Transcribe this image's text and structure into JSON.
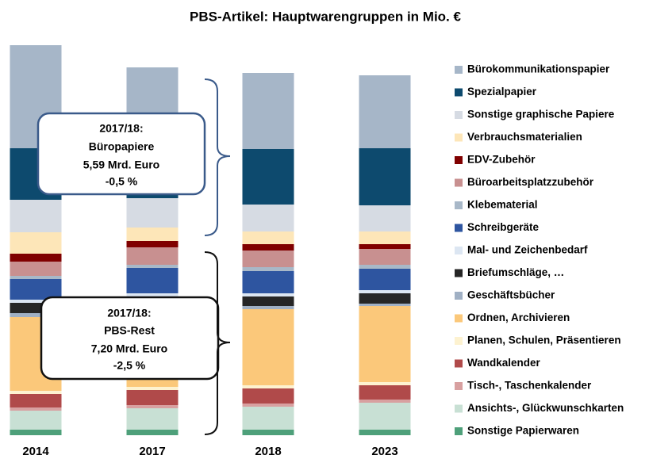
{
  "chart_data": {
    "type": "stacked_bar",
    "title": "PBS-Artikel:  Hauptwarengruppen in Mio. €",
    "categories": [
      "2014",
      "2017",
      "2018",
      "2023"
    ],
    "ylim": [
      0,
      14000
    ],
    "series": [
      {
        "name": "Bürokommunikationspapier",
        "color": "#a6b6c8",
        "values": [
          3640,
          2800,
          2688,
          2576
        ]
      },
      {
        "name": "Spezialpapier",
        "color": "#0d4a6e",
        "values": [
          1820,
          1820,
          1960,
          2016
        ]
      },
      {
        "name": "Sonstige graphische Papiere",
        "color": "#d6dbe3",
        "values": [
          1148,
          1036,
          952,
          924
        ]
      },
      {
        "name": "Verbrauchsmaterialien",
        "color": "#fde6b8",
        "values": [
          756,
          476,
          448,
          448
        ]
      },
      {
        "name": "EDV-Zubehör",
        "color": "#800000",
        "values": [
          280,
          224,
          224,
          168
        ]
      },
      {
        "name": "Büroarbeitsplatzzubehör",
        "color": "#c89090",
        "values": [
          504,
          616,
          588,
          560
        ]
      },
      {
        "name": "Klebematerial",
        "color": "#a8b8c8",
        "values": [
          112,
          112,
          140,
          140
        ]
      },
      {
        "name": "Schreibgeräte",
        "color": "#2e55a0",
        "values": [
          728,
          896,
          784,
          756
        ]
      },
      {
        "name": "Mal- und Zeichenbedarf",
        "color": "#dce6f2",
        "values": [
          112,
          336,
          112,
          112
        ]
      },
      {
        "name": "Briefumschläge, …",
        "color": "#262626",
        "values": [
          364,
          336,
          336,
          364
        ]
      },
      {
        "name": "Geschäftsbücher",
        "color": "#a0b0c4",
        "values": [
          140,
          112,
          112,
          84
        ]
      },
      {
        "name": "Ordnen, Archivieren",
        "color": "#fbc87a",
        "values": [
          2604,
          2520,
          2688,
          2688
        ]
      },
      {
        "name": "Planen, Schulen, Präsentieren",
        "color": "#fdf2d0",
        "values": [
          112,
          112,
          112,
          112
        ]
      },
      {
        "name": "Wandkalender",
        "color": "#b04a4a",
        "values": [
          476,
          532,
          532,
          504
        ]
      },
      {
        "name": "Tisch-, Taschenkalender",
        "color": "#d8a0a0",
        "values": [
          112,
          112,
          112,
          112
        ]
      },
      {
        "name": "Ansichts-, Glückwunschkarten",
        "color": "#c8e0d4",
        "values": [
          672,
          756,
          812,
          952
        ]
      },
      {
        "name": "Sonstige Papierwaren",
        "color": "#4ea07a",
        "values": [
          196,
          196,
          196,
          196
        ]
      }
    ],
    "annotations": [
      {
        "lines": [
          "2017/18:",
          "Büropapiere",
          "5,59 Mrd. Euro",
          "-0,5 %"
        ]
      },
      {
        "lines": [
          "2017/18:",
          "PBS-Rest",
          "7,20 Mrd. Euro",
          "-2,5 %"
        ]
      }
    ]
  }
}
